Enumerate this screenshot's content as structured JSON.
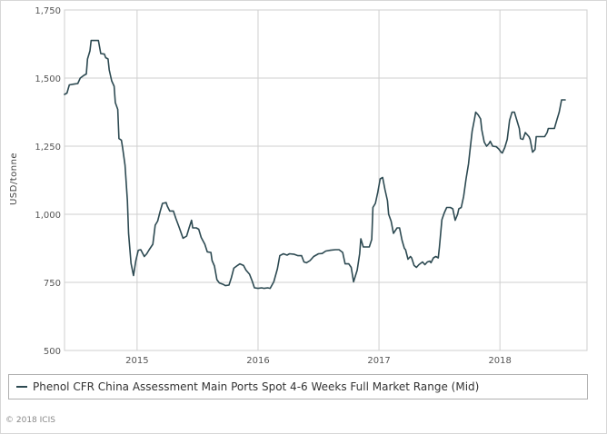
{
  "chart_data": {
    "type": "line",
    "ylabel": "USD/tonne",
    "ylim": [
      500,
      1750
    ],
    "yticks": [
      500,
      750,
      1000,
      1250,
      1500,
      1750
    ],
    "ytick_labels": [
      "500",
      "750",
      "1,000",
      "1,250",
      "1,500",
      "1,750"
    ],
    "xlim": [
      2014.4,
      2018.72
    ],
    "xticks": [
      2015,
      2016,
      2017,
      2018
    ],
    "xtick_labels": [
      "2015",
      "2016",
      "2017",
      "2018"
    ],
    "grid": true,
    "legend_position": "bottom",
    "series": [
      {
        "name": "Phenol CFR China Assessment Main Ports Spot 4-6 Weeks Full Market Range (Mid)",
        "color": "#2d4a52",
        "points": [
          [
            2014.4,
            1440
          ],
          [
            2014.42,
            1445
          ],
          [
            2014.44,
            1475
          ],
          [
            2014.48,
            1478
          ],
          [
            2014.51,
            1480
          ],
          [
            2014.53,
            1500
          ],
          [
            2014.56,
            1510
          ],
          [
            2014.58,
            1515
          ],
          [
            2014.59,
            1570
          ],
          [
            2014.61,
            1600
          ],
          [
            2014.62,
            1638
          ],
          [
            2014.68,
            1638
          ],
          [
            2014.7,
            1590
          ],
          [
            2014.73,
            1588
          ],
          [
            2014.74,
            1575
          ],
          [
            2014.76,
            1570
          ],
          [
            2014.77,
            1530
          ],
          [
            2014.79,
            1490
          ],
          [
            2014.81,
            1470
          ],
          [
            2014.82,
            1410
          ],
          [
            2014.84,
            1385
          ],
          [
            2014.85,
            1278
          ],
          [
            2014.87,
            1272
          ],
          [
            2014.88,
            1245
          ],
          [
            2014.9,
            1180
          ],
          [
            2014.92,
            1050
          ],
          [
            2014.93,
            930
          ],
          [
            2014.95,
            820
          ],
          [
            2014.97,
            775
          ],
          [
            2014.99,
            830
          ],
          [
            2015.01,
            868
          ],
          [
            2015.03,
            870
          ],
          [
            2015.06,
            845
          ],
          [
            2015.08,
            855
          ],
          [
            2015.1,
            870
          ],
          [
            2015.13,
            890
          ],
          [
            2015.15,
            960
          ],
          [
            2015.17,
            975
          ],
          [
            2015.19,
            1010
          ],
          [
            2015.21,
            1040
          ],
          [
            2015.24,
            1043
          ],
          [
            2015.25,
            1030
          ],
          [
            2015.27,
            1012
          ],
          [
            2015.3,
            1012
          ],
          [
            2015.32,
            985
          ],
          [
            2015.35,
            950
          ],
          [
            2015.38,
            912
          ],
          [
            2015.41,
            920
          ],
          [
            2015.43,
            950
          ],
          [
            2015.45,
            978
          ],
          [
            2015.46,
            950
          ],
          [
            2015.49,
            950
          ],
          [
            2015.51,
            945
          ],
          [
            2015.53,
            915
          ],
          [
            2015.56,
            890
          ],
          [
            2015.58,
            862
          ],
          [
            2015.61,
            860
          ],
          [
            2015.62,
            830
          ],
          [
            2015.64,
            810
          ],
          [
            2015.66,
            760
          ],
          [
            2015.68,
            748
          ],
          [
            2015.71,
            743
          ],
          [
            2015.73,
            738
          ],
          [
            2015.76,
            740
          ],
          [
            2015.78,
            768
          ],
          [
            2015.8,
            802
          ],
          [
            2015.83,
            812
          ],
          [
            2015.85,
            818
          ],
          [
            2015.88,
            812
          ],
          [
            2015.9,
            795
          ],
          [
            2015.93,
            780
          ],
          [
            2015.95,
            757
          ],
          [
            2015.97,
            730
          ],
          [
            2016.0,
            728
          ],
          [
            2016.03,
            730
          ],
          [
            2016.05,
            728
          ],
          [
            2016.08,
            730
          ],
          [
            2016.1,
            728
          ],
          [
            2016.13,
            752
          ],
          [
            2016.16,
            800
          ],
          [
            2016.18,
            848
          ],
          [
            2016.21,
            855
          ],
          [
            2016.24,
            850
          ],
          [
            2016.26,
            855
          ],
          [
            2016.3,
            853
          ],
          [
            2016.33,
            848
          ],
          [
            2016.36,
            848
          ],
          [
            2016.38,
            825
          ],
          [
            2016.4,
            822
          ],
          [
            2016.43,
            830
          ],
          [
            2016.46,
            845
          ],
          [
            2016.5,
            855
          ],
          [
            2016.53,
            856
          ],
          [
            2016.56,
            865
          ],
          [
            2016.6,
            868
          ],
          [
            2016.64,
            870
          ],
          [
            2016.67,
            870
          ],
          [
            2016.7,
            860
          ],
          [
            2016.72,
            818
          ],
          [
            2016.75,
            818
          ],
          [
            2016.77,
            805
          ],
          [
            2016.79,
            752
          ],
          [
            2016.82,
            795
          ],
          [
            2016.84,
            855
          ],
          [
            2016.85,
            910
          ],
          [
            2016.87,
            880
          ],
          [
            2016.92,
            880
          ],
          [
            2016.94,
            908
          ],
          [
            2016.95,
            1025
          ],
          [
            2016.97,
            1040
          ],
          [
            2016.99,
            1080
          ],
          [
            2017.01,
            1130
          ],
          [
            2017.03,
            1135
          ],
          [
            2017.05,
            1090
          ],
          [
            2017.07,
            1050
          ],
          [
            2017.08,
            1000
          ],
          [
            2017.1,
            975
          ],
          [
            2017.12,
            930
          ],
          [
            2017.15,
            950
          ],
          [
            2017.17,
            950
          ],
          [
            2017.19,
            905
          ],
          [
            2017.21,
            875
          ],
          [
            2017.22,
            870
          ],
          [
            2017.24,
            835
          ],
          [
            2017.26,
            845
          ],
          [
            2017.27,
            840
          ],
          [
            2017.29,
            812
          ],
          [
            2017.31,
            805
          ],
          [
            2017.33,
            815
          ],
          [
            2017.36,
            825
          ],
          [
            2017.38,
            815
          ],
          [
            2017.4,
            825
          ],
          [
            2017.42,
            828
          ],
          [
            2017.43,
            822
          ],
          [
            2017.45,
            840
          ],
          [
            2017.47,
            845
          ],
          [
            2017.49,
            840
          ],
          [
            2017.5,
            880
          ],
          [
            2017.52,
            980
          ],
          [
            2017.54,
            1005
          ],
          [
            2017.56,
            1025
          ],
          [
            2017.59,
            1025
          ],
          [
            2017.61,
            1020
          ],
          [
            2017.63,
            978
          ],
          [
            2017.65,
            1000
          ],
          [
            2017.66,
            1020
          ],
          [
            2017.68,
            1025
          ],
          [
            2017.7,
            1065
          ],
          [
            2017.72,
            1130
          ],
          [
            2017.74,
            1185
          ],
          [
            2017.75,
            1225
          ],
          [
            2017.77,
            1305
          ],
          [
            2017.79,
            1350
          ],
          [
            2017.8,
            1375
          ],
          [
            2017.82,
            1365
          ],
          [
            2017.84,
            1350
          ],
          [
            2017.85,
            1310
          ],
          [
            2017.87,
            1265
          ],
          [
            2017.89,
            1250
          ],
          [
            2017.91,
            1260
          ],
          [
            2017.92,
            1268
          ],
          [
            2017.94,
            1250
          ],
          [
            2017.97,
            1248
          ],
          [
            2017.99,
            1240
          ],
          [
            2018.01,
            1228
          ],
          [
            2018.02,
            1225
          ],
          [
            2018.04,
            1245
          ],
          [
            2018.06,
            1275
          ],
          [
            2018.08,
            1345
          ],
          [
            2018.1,
            1375
          ],
          [
            2018.12,
            1375
          ],
          [
            2018.14,
            1345
          ],
          [
            2018.16,
            1315
          ],
          [
            2018.17,
            1278
          ],
          [
            2018.19,
            1275
          ],
          [
            2018.21,
            1300
          ],
          [
            2018.24,
            1285
          ],
          [
            2018.25,
            1275
          ],
          [
            2018.27,
            1228
          ],
          [
            2018.29,
            1238
          ],
          [
            2018.3,
            1285
          ],
          [
            2018.37,
            1285
          ],
          [
            2018.39,
            1300
          ],
          [
            2018.4,
            1315
          ],
          [
            2018.45,
            1315
          ],
          [
            2018.47,
            1345
          ],
          [
            2018.49,
            1375
          ],
          [
            2018.51,
            1420
          ],
          [
            2018.54,
            1420
          ]
        ]
      }
    ]
  },
  "copyright": "© 2018 ICIS"
}
